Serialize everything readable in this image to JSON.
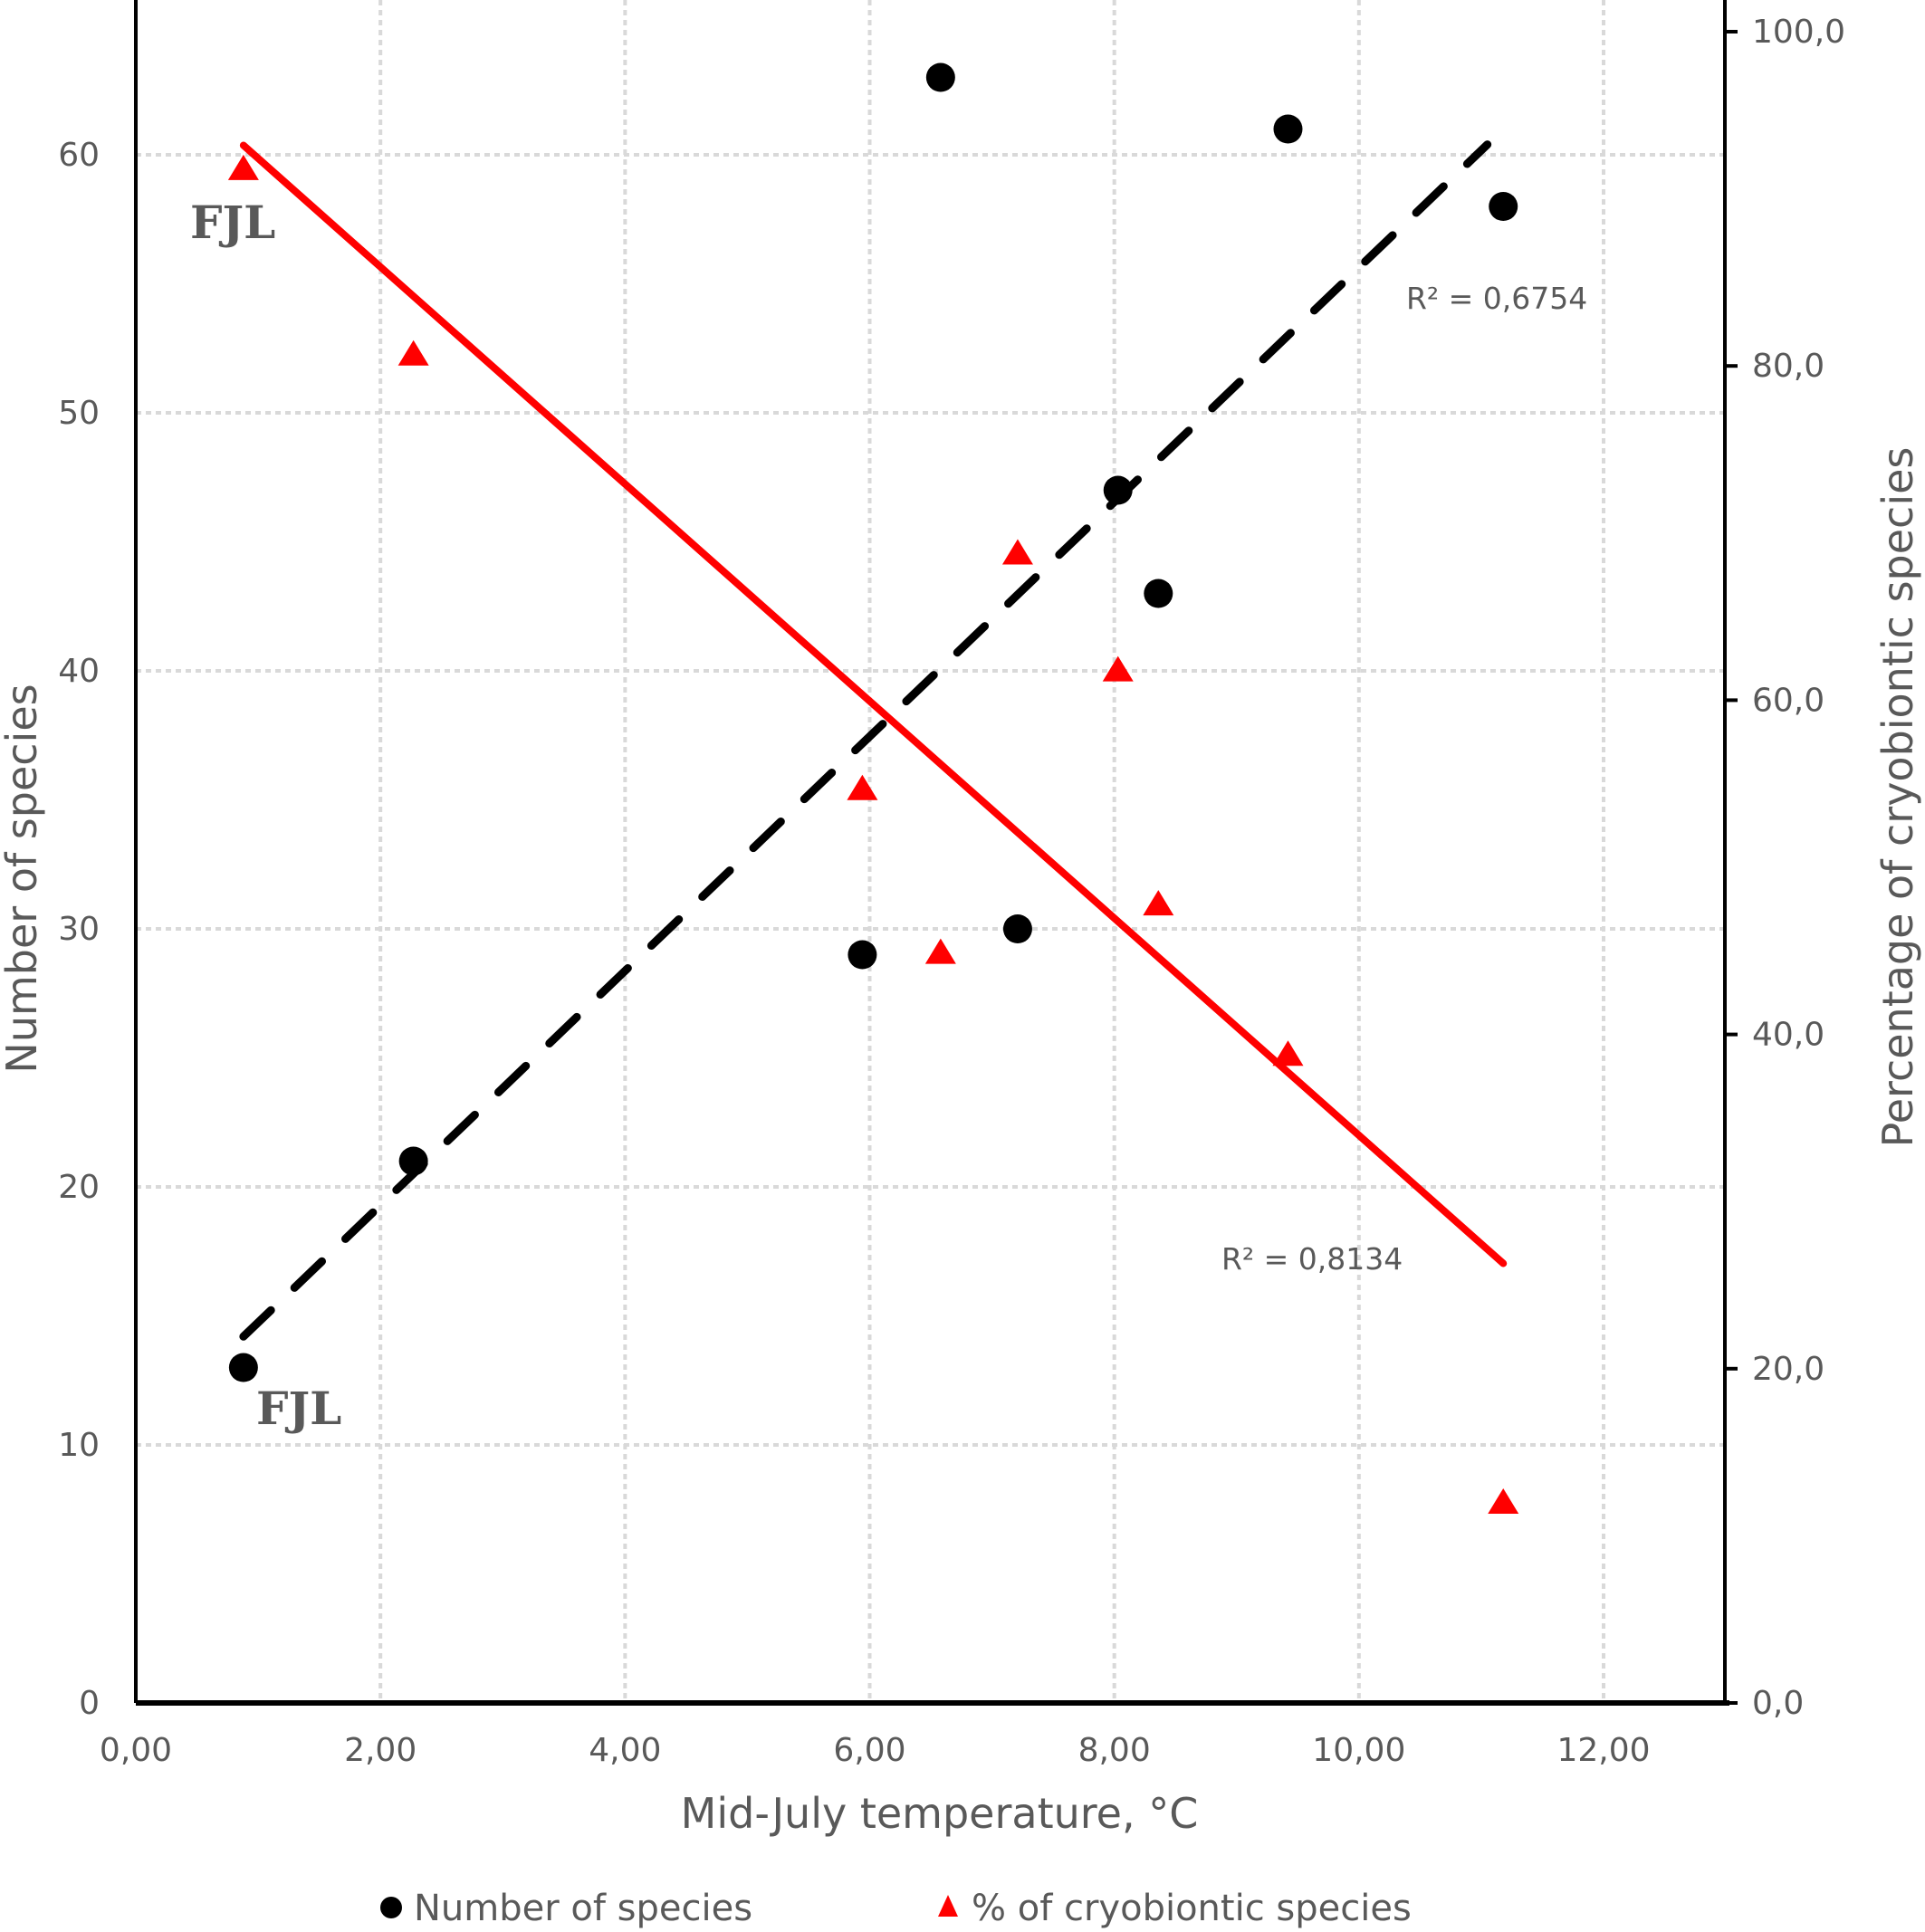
{
  "chart_data": {
    "type": "scatter",
    "title": "",
    "xlabel": "Mid-July temperature, °C",
    "ylabel": "Number of species",
    "y2label": "Percentage of cryobiontic species",
    "xlim": [
      0,
      13
    ],
    "ylim": [
      0,
      66
    ],
    "y2lim": [
      0,
      105
    ],
    "grid": true,
    "x_ticks": [
      0,
      2,
      4,
      6,
      8,
      10,
      12
    ],
    "x_tick_labels": [
      "0,00",
      "2,00",
      "4,00",
      "6,00",
      "8,00",
      "10,00",
      "12,00"
    ],
    "y_ticks": [
      0,
      10,
      20,
      30,
      40,
      50,
      60
    ],
    "y_tick_labels": [
      "0",
      "10",
      "20",
      "30",
      "40",
      "50",
      "60"
    ],
    "y2_ticks": [
      0,
      20,
      40,
      60,
      80,
      100
    ],
    "y2_tick_labels": [
      "0,0",
      "20,0",
      "40,0",
      "60,0",
      "80,0",
      "100,0"
    ],
    "legend_position": "bottom",
    "series": [
      {
        "name": "Number of species",
        "axis": "left",
        "marker": "circle",
        "color": "#000000",
        "x": [
          0.88,
          2.27,
          5.94,
          6.58,
          7.21,
          8.03,
          8.36,
          9.42,
          11.18
        ],
        "y": [
          13,
          21,
          29,
          63,
          30,
          47,
          43,
          61,
          58
        ]
      },
      {
        "name": "% of cryobiontic species",
        "axis": "right",
        "marker": "triangle",
        "color": "#ff0000",
        "x": [
          0.88,
          2.27,
          5.94,
          6.58,
          7.21,
          8.03,
          8.36,
          9.42,
          11.18
        ],
        "y": [
          91.7,
          80.6,
          54.6,
          44.8,
          68.7,
          61.7,
          47.7,
          38.7,
          11.9
        ]
      }
    ],
    "trendlines": [
      {
        "series": "Number of species",
        "axis": "left",
        "style": "dashed",
        "color": "#000000",
        "x": [
          0.88,
          11.05
        ],
        "y": [
          14.2,
          60.4
        ],
        "r2_label": "R² = 0,6754"
      },
      {
        "series": "% of cryobiontic species",
        "axis": "right",
        "style": "solid",
        "color": "#ff0000",
        "x": [
          0.88,
          11.18
        ],
        "y": [
          93.2,
          26.3
        ],
        "r2_label": "R² = 0,8134"
      }
    ],
    "annotations": [
      {
        "text": "FJL",
        "series": "% of cryobiontic species",
        "near_x": 0.88,
        "near_y": 91.7
      },
      {
        "text": "FJL",
        "series": "Number of species",
        "near_x": 0.88,
        "near_y": 13
      }
    ]
  }
}
